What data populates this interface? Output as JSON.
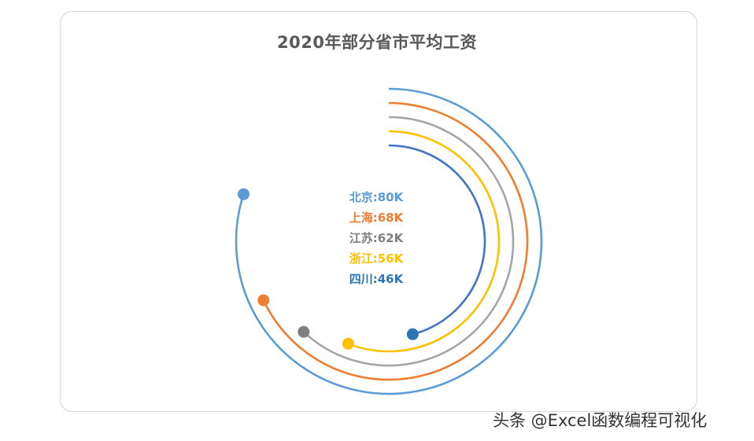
{
  "chart_data": {
    "type": "radial_bar",
    "title": "2020年部分省市平均工资",
    "max": 100,
    "series": [
      {
        "name": "北京",
        "value": 80,
        "label": "北京:80K",
        "color": "#5b9bd5"
      },
      {
        "name": "上海",
        "value": 68,
        "label": "上海:68K",
        "color": "#ed7d31"
      },
      {
        "name": "江苏",
        "value": 62,
        "label": "江苏:62K",
        "color": "#7f7f7f",
        "arc_color": "#a5a5a5"
      },
      {
        "name": "浙江",
        "value": 56,
        "label": "浙江:56K",
        "color": "#ffc000"
      },
      {
        "name": "四川",
        "value": 46,
        "label": "四川:46K",
        "color": "#2e75b6",
        "arc_color": "#4472c4"
      }
    ]
  },
  "watermark": "头条 @Excel函数编程可视化"
}
